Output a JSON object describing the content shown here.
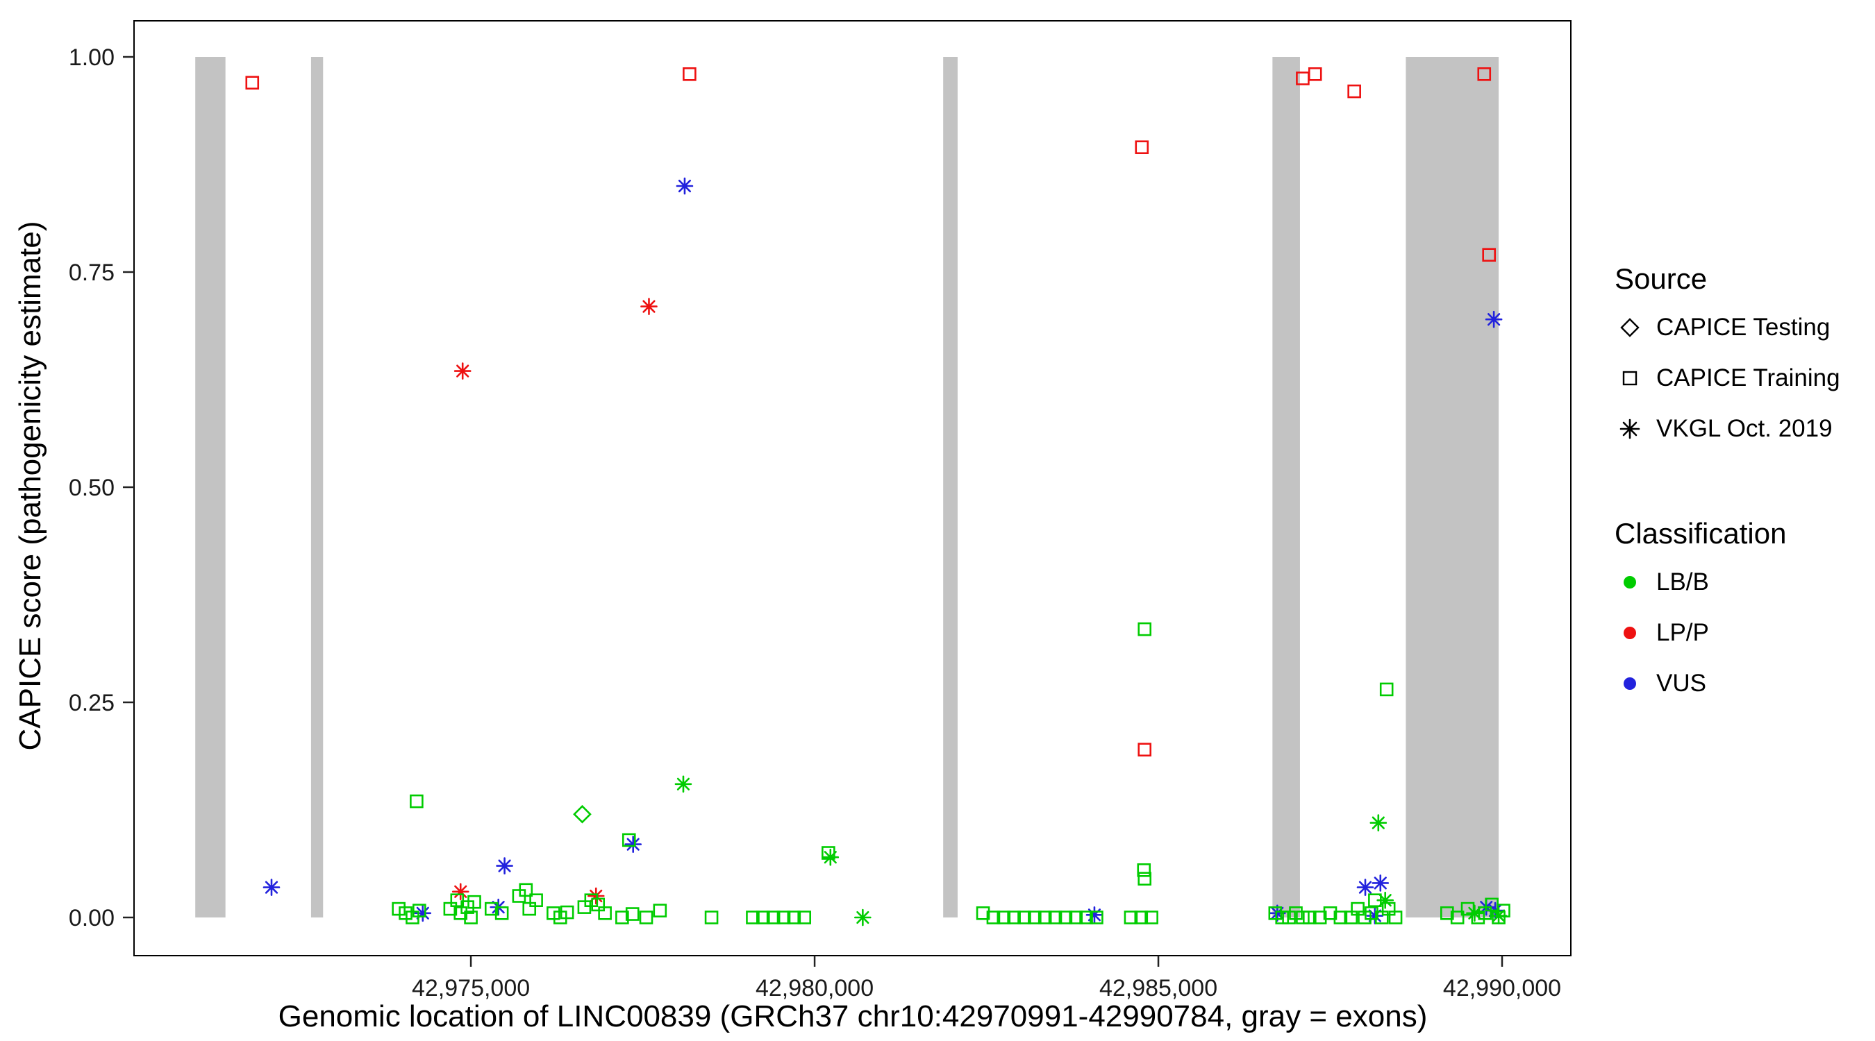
{
  "chart_data": {
    "type": "scatter",
    "title": "",
    "xlabel": "Genomic location of LINC00839 (GRCh37 chr10:42970991-42990784, gray = exons)",
    "ylabel": "CAPICE score (pathogenicity estimate)",
    "x_range": [
      42970100,
      42991000
    ],
    "y_range": [
      0,
      1
    ],
    "x_ticks": [
      {
        "value": 42975000,
        "label": "42,975,000"
      },
      {
        "value": 42980000,
        "label": "42,980,000"
      },
      {
        "value": 42985000,
        "label": "42,985,000"
      },
      {
        "value": 42990000,
        "label": "42,990,000"
      }
    ],
    "y_ticks": [
      {
        "value": 0,
        "label": "0.00"
      },
      {
        "value": 0.25,
        "label": "0.25"
      },
      {
        "value": 0.5,
        "label": "0.50"
      },
      {
        "value": 0.75,
        "label": "0.75"
      },
      {
        "value": 1,
        "label": "1.00"
      }
    ],
    "grid": false,
    "legend_position": "right",
    "exon_color": "#C3C3C3",
    "exons": [
      [
        42970991,
        42971430
      ],
      [
        42972675,
        42972850
      ],
      [
        42981870,
        42982080
      ],
      [
        42986660,
        42987060
      ],
      [
        42988600,
        42989950
      ]
    ],
    "colors": {
      "LB/B": "#00CC00",
      "LP/P": "#EE1111",
      "VUS": "#2222DD"
    },
    "shapes": {
      "testing": "diamond",
      "training": "square",
      "vkgl": "asterisk"
    },
    "point_format": [
      "genomic_position",
      "capice_score",
      "classification",
      "source"
    ],
    "points": [
      [
        42971820,
        0.97,
        "LP/P",
        "training"
      ],
      [
        42978180,
        0.98,
        "LP/P",
        "training"
      ],
      [
        42984760,
        0.895,
        "LP/P",
        "training"
      ],
      [
        42987100,
        0.975,
        "LP/P",
        "training"
      ],
      [
        42987280,
        0.98,
        "LP/P",
        "training"
      ],
      [
        42987850,
        0.96,
        "LP/P",
        "training"
      ],
      [
        42989740,
        0.98,
        "LP/P",
        "training"
      ],
      [
        42989810,
        0.77,
        "LP/P",
        "training"
      ],
      [
        42984800,
        0.195,
        "LP/P",
        "training"
      ],
      [
        42974880,
        0.635,
        "LP/P",
        "vkgl"
      ],
      [
        42977590,
        0.71,
        "LP/P",
        "vkgl"
      ],
      [
        42974850,
        0.03,
        "LP/P",
        "vkgl"
      ],
      [
        42976820,
        0.025,
        "LP/P",
        "vkgl"
      ],
      [
        42978110,
        0.85,
        "VUS",
        "vkgl"
      ],
      [
        42989880,
        0.695,
        "VUS",
        "vkgl"
      ],
      [
        42972100,
        0.035,
        "VUS",
        "vkgl"
      ],
      [
        42975490,
        0.06,
        "VUS",
        "vkgl"
      ],
      [
        42977360,
        0.085,
        "VUS",
        "vkgl"
      ],
      [
        42975400,
        0.012,
        "VUS",
        "vkgl"
      ],
      [
        42974300,
        0.005,
        "VUS",
        "vkgl"
      ],
      [
        42984070,
        0.003,
        "VUS",
        "vkgl"
      ],
      [
        42986730,
        0.005,
        "VUS",
        "vkgl"
      ],
      [
        42988010,
        0.035,
        "VUS",
        "vkgl"
      ],
      [
        42988230,
        0.04,
        "VUS",
        "vkgl"
      ],
      [
        42988150,
        0.002,
        "VUS",
        "vkgl"
      ],
      [
        42989770,
        0.012,
        "VUS",
        "vkgl"
      ],
      [
        42989900,
        0.008,
        "VUS",
        "vkgl"
      ],
      [
        42976620,
        0.12,
        "LB/B",
        "testing"
      ],
      [
        42978090,
        0.155,
        "LB/B",
        "vkgl"
      ],
      [
        42980700,
        0.0,
        "LB/B",
        "vkgl"
      ],
      [
        42980230,
        0.07,
        "LB/B",
        "vkgl"
      ],
      [
        42988200,
        0.11,
        "LB/B",
        "vkgl"
      ],
      [
        42989600,
        0.005,
        "LB/B",
        "vkgl"
      ],
      [
        42989950,
        0.002,
        "LB/B",
        "vkgl"
      ],
      [
        42988300,
        0.02,
        "LB/B",
        "vkgl"
      ],
      [
        42974210,
        0.135,
        "LB/B",
        "training"
      ],
      [
        42973950,
        0.01,
        "LB/B",
        "training"
      ],
      [
        42974050,
        0.005,
        "LB/B",
        "training"
      ],
      [
        42974150,
        0.0,
        "LB/B",
        "training"
      ],
      [
        42974250,
        0.008,
        "LB/B",
        "training"
      ],
      [
        42974700,
        0.01,
        "LB/B",
        "training"
      ],
      [
        42974800,
        0.02,
        "LB/B",
        "training"
      ],
      [
        42974850,
        0.005,
        "LB/B",
        "training"
      ],
      [
        42974950,
        0.012,
        "LB/B",
        "training"
      ],
      [
        42975000,
        0.0,
        "LB/B",
        "training"
      ],
      [
        42975050,
        0.018,
        "LB/B",
        "training"
      ],
      [
        42975300,
        0.01,
        "LB/B",
        "training"
      ],
      [
        42975450,
        0.005,
        "LB/B",
        "training"
      ],
      [
        42975700,
        0.025,
        "LB/B",
        "training"
      ],
      [
        42975800,
        0.032,
        "LB/B",
        "training"
      ],
      [
        42975850,
        0.01,
        "LB/B",
        "training"
      ],
      [
        42975950,
        0.02,
        "LB/B",
        "training"
      ],
      [
        42976200,
        0.005,
        "LB/B",
        "training"
      ],
      [
        42976300,
        0.0,
        "LB/B",
        "training"
      ],
      [
        42976400,
        0.006,
        "LB/B",
        "training"
      ],
      [
        42976650,
        0.012,
        "LB/B",
        "training"
      ],
      [
        42976750,
        0.02,
        "LB/B",
        "training"
      ],
      [
        42976850,
        0.015,
        "LB/B",
        "training"
      ],
      [
        42976950,
        0.005,
        "LB/B",
        "training"
      ],
      [
        42977200,
        0.0,
        "LB/B",
        "training"
      ],
      [
        42977300,
        0.09,
        "LB/B",
        "training"
      ],
      [
        42977350,
        0.004,
        "LB/B",
        "training"
      ],
      [
        42977550,
        0.0,
        "LB/B",
        "training"
      ],
      [
        42977750,
        0.008,
        "LB/B",
        "training"
      ],
      [
        42978500,
        0.0,
        "LB/B",
        "training"
      ],
      [
        42979100,
        0.0,
        "LB/B",
        "training"
      ],
      [
        42979250,
        0.0,
        "LB/B",
        "training"
      ],
      [
        42979400,
        0.0,
        "LB/B",
        "training"
      ],
      [
        42979550,
        0.0,
        "LB/B",
        "training"
      ],
      [
        42979700,
        0.0,
        "LB/B",
        "training"
      ],
      [
        42979850,
        0.0,
        "LB/B",
        "training"
      ],
      [
        42980200,
        0.075,
        "LB/B",
        "training"
      ],
      [
        42982450,
        0.005,
        "LB/B",
        "training"
      ],
      [
        42982600,
        0.0,
        "LB/B",
        "training"
      ],
      [
        42982750,
        0.0,
        "LB/B",
        "training"
      ],
      [
        42982900,
        0.0,
        "LB/B",
        "training"
      ],
      [
        42983050,
        0.0,
        "LB/B",
        "training"
      ],
      [
        42983200,
        0.0,
        "LB/B",
        "training"
      ],
      [
        42983350,
        0.0,
        "LB/B",
        "training"
      ],
      [
        42983500,
        0.0,
        "LB/B",
        "training"
      ],
      [
        42983650,
        0.0,
        "LB/B",
        "training"
      ],
      [
        42983800,
        0.0,
        "LB/B",
        "training"
      ],
      [
        42983950,
        0.0,
        "LB/B",
        "training"
      ],
      [
        42984100,
        0.0,
        "LB/B",
        "training"
      ],
      [
        42984600,
        0.0,
        "LB/B",
        "training"
      ],
      [
        42984750,
        0.0,
        "LB/B",
        "training"
      ],
      [
        42984900,
        0.0,
        "LB/B",
        "training"
      ],
      [
        42984790,
        0.055,
        "LB/B",
        "training"
      ],
      [
        42984800,
        0.045,
        "LB/B",
        "training"
      ],
      [
        42984800,
        0.335,
        "LB/B",
        "training"
      ],
      [
        42986700,
        0.005,
        "LB/B",
        "training"
      ],
      [
        42986800,
        0.0,
        "LB/B",
        "training"
      ],
      [
        42986900,
        0.0,
        "LB/B",
        "training"
      ],
      [
        42987000,
        0.005,
        "LB/B",
        "training"
      ],
      [
        42987100,
        0.0,
        "LB/B",
        "training"
      ],
      [
        42987200,
        0.0,
        "LB/B",
        "training"
      ],
      [
        42987350,
        0.0,
        "LB/B",
        "training"
      ],
      [
        42987500,
        0.005,
        "LB/B",
        "training"
      ],
      [
        42987650,
        0.0,
        "LB/B",
        "training"
      ],
      [
        42987800,
        0.0,
        "LB/B",
        "training"
      ],
      [
        42987900,
        0.01,
        "LB/B",
        "training"
      ],
      [
        42988000,
        0.0,
        "LB/B",
        "training"
      ],
      [
        42988100,
        0.005,
        "LB/B",
        "training"
      ],
      [
        42988150,
        0.02,
        "LB/B",
        "training"
      ],
      [
        42988250,
        0.0,
        "LB/B",
        "training"
      ],
      [
        42988350,
        0.01,
        "LB/B",
        "training"
      ],
      [
        42988450,
        0.0,
        "LB/B",
        "training"
      ],
      [
        42988320,
        0.265,
        "LB/B",
        "training"
      ],
      [
        42989200,
        0.005,
        "LB/B",
        "training"
      ],
      [
        42989350,
        0.0,
        "LB/B",
        "training"
      ],
      [
        42989500,
        0.01,
        "LB/B",
        "training"
      ],
      [
        42989650,
        0.0,
        "LB/B",
        "training"
      ],
      [
        42989750,
        0.005,
        "LB/B",
        "training"
      ],
      [
        42989850,
        0.015,
        "LB/B",
        "training"
      ],
      [
        42989950,
        0.0,
        "LB/B",
        "training"
      ],
      [
        42990020,
        0.008,
        "LB/B",
        "training"
      ]
    ]
  },
  "legend": {
    "source": {
      "title": "Source",
      "items": [
        {
          "label": "CAPICE Testing",
          "shape": "diamond"
        },
        {
          "label": "CAPICE Training",
          "shape": "square"
        },
        {
          "label": "VKGL Oct. 2019",
          "shape": "asterisk"
        }
      ]
    },
    "classification": {
      "title": "Classification",
      "items": [
        {
          "label": "LB/B",
          "color": "#00CC00"
        },
        {
          "label": "LP/P",
          "color": "#EE1111"
        },
        {
          "label": "VUS",
          "color": "#2222DD"
        }
      ]
    }
  }
}
